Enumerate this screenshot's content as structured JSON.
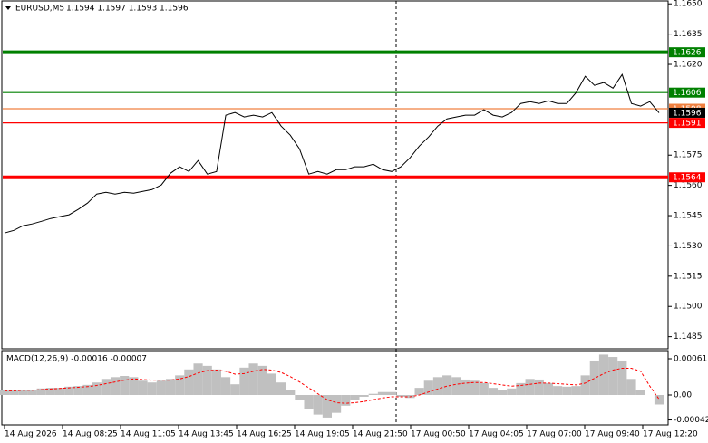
{
  "chart_data": [
    {
      "type": "line",
      "title": "EURUSD,M5",
      "subtitle": "1.1594 1.1597 1.1593 1.1596",
      "color": "#000000",
      "values": [
        1.15364,
        1.15377,
        1.154,
        1.15409,
        1.15422,
        1.15436,
        1.15445,
        1.15454,
        1.15481,
        1.15512,
        1.15557,
        1.15566,
        1.15557,
        1.15566,
        1.15561,
        1.1557,
        1.15579,
        1.15602,
        1.1566,
        1.15692,
        1.15669,
        1.15723,
        1.15656,
        1.15669,
        1.15948,
        1.15961,
        1.15939,
        1.15948,
        1.15939,
        1.15961,
        1.15894,
        1.15849,
        1.15781,
        1.15656,
        1.15669,
        1.15656,
        1.15678,
        1.15678,
        1.15692,
        1.15692,
        1.15705,
        1.15678,
        1.15669,
        1.15692,
        1.15737,
        1.15795,
        1.1584,
        1.15894,
        1.1593,
        1.15939,
        1.15948,
        1.15948,
        1.15975,
        1.15948,
        1.15939,
        1.15961,
        1.16006,
        1.16015,
        1.16006,
        1.16019,
        1.16006,
        1.16006,
        1.1606,
        1.16141,
        1.16096,
        1.1611,
        1.16082,
        1.1615,
        1.16006,
        1.15993,
        1.16015,
        1.1596
      ],
      "x_labels": [
        "14 Aug 2026",
        "14 Aug 08:25",
        "14 Aug 11:05",
        "14 Aug 13:45",
        "14 Aug 16:25",
        "14 Aug 19:05",
        "14 Aug 21:50",
        "17 Aug 00:50",
        "17 Aug 04:05",
        "17 Aug 07:00",
        "17 Aug 09:40",
        "17 Aug 12:20"
      ],
      "ylim": [
        1.1479,
        1.1651
      ],
      "yticks": [
        {
          "value": 1.165,
          "label": "1.1650"
        },
        1.1635,
        {
          "value": 1.162,
          "label": "1.1620"
        },
        1.1575,
        {
          "value": 1.156,
          "label": "1.1560"
        },
        1.1545,
        {
          "value": 1.153,
          "label": "1.1530"
        },
        1.1515,
        {
          "value": 1.15,
          "label": "1.1500"
        },
        1.1485
      ],
      "levels": [
        {
          "value": 1.1626,
          "color": "#008000",
          "thick": true
        },
        {
          "value": 1.1606,
          "color": "#008000",
          "thick": false
        },
        {
          "value": 1.1598,
          "color": "#f08040",
          "thick": false
        },
        {
          "value": 1.1591,
          "color": "#ff0000",
          "thick": false
        },
        {
          "value": 1.1564,
          "color": "#ff0000",
          "thick": true
        }
      ],
      "last_price_color": "#000000"
    },
    {
      "type": "macd",
      "title": "MACD(12,26,9) -0.00016 -0.00007",
      "ylim": [
        -0.000488,
        0.000732
      ],
      "yticks": [
        0.00061,
        {
          "value": 0,
          "label": "0.00"
        },
        -0.00042
      ],
      "series": [
        {
          "name": "MACD",
          "color": "#c0c0c0",
          "values": [
            8e-05,
            8e-05,
            9e-05,
            9e-05,
            0.00011,
            0.00012,
            0.00012,
            0.00014,
            0.00015,
            0.00017,
            0.00021,
            0.00027,
            0.0003,
            0.00032,
            0.0003,
            0.00024,
            0.00021,
            0.00024,
            0.00027,
            0.00033,
            0.00043,
            0.00053,
            0.00049,
            0.00043,
            0.0003,
            0.00018,
            0.00046,
            0.00053,
            0.00049,
            0.00036,
            0.00021,
            8e-05,
            -8e-05,
            -0.00023,
            -0.00033,
            -0.00038,
            -0.0003,
            -0.00018,
            -9e-05,
            -3e-05,
            2e-05,
            5e-05,
            5e-05,
            -3e-05,
            -5e-05,
            0.00012,
            0.00024,
            0.0003,
            0.00033,
            0.0003,
            0.00026,
            0.00024,
            0.0002,
            0.00012,
            8e-05,
            0.00011,
            0.0002,
            0.00027,
            0.00026,
            0.0002,
            0.00015,
            0.00014,
            0.00015,
            0.00033,
            0.00058,
            0.00068,
            0.00064,
            0.00058,
            0.00027,
            9e-05,
            0,
            -0.00016
          ]
        },
        {
          "name": "Signal",
          "color": "#ff0000",
          "values": [
            7e-05,
            7e-05,
            8e-05,
            8e-05,
            9e-05,
            0.0001,
            0.00011,
            0.00012,
            0.00013,
            0.00014,
            0.00016,
            0.00019,
            0.00022,
            0.00025,
            0.00027,
            0.00026,
            0.00025,
            0.00025,
            0.00025,
            0.00027,
            0.00031,
            0.00037,
            0.00041,
            0.00042,
            0.0004,
            0.00035,
            0.00036,
            0.0004,
            0.00043,
            0.00042,
            0.00038,
            0.00031,
            0.00022,
            0.00012,
            2e-05,
            -8e-05,
            -0.00013,
            -0.00014,
            -0.00013,
            -0.00011,
            -8e-05,
            -5e-05,
            -3e-05,
            -3e-05,
            -3e-05,
            0,
            5e-05,
            0.0001,
            0.00015,
            0.00018,
            0.0002,
            0.00021,
            0.00021,
            0.00019,
            0.00017,
            0.00015,
            0.00016,
            0.00018,
            0.0002,
            0.0002,
            0.00019,
            0.00018,
            0.00017,
            0.0002,
            0.00028,
            0.00036,
            0.00042,
            0.00045,
            0.00045,
            0.0004,
            0.00015,
            -7e-05
          ]
        }
      ]
    }
  ]
}
